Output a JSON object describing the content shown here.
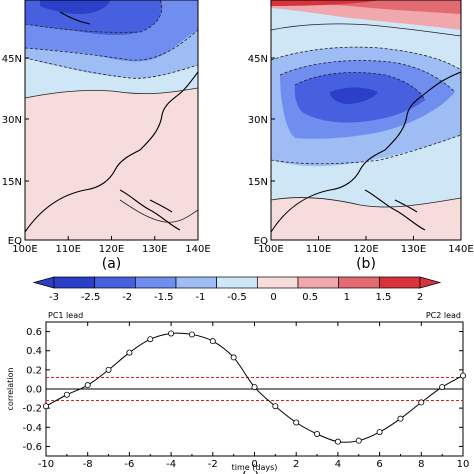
{
  "colors": {
    "deep_blue": "#2b3fc8",
    "blue": "#4660e0",
    "mid_blue": "#6f8ef0",
    "light_blue": "#9fbdf5",
    "pale_blue": "#cfe6f7",
    "pale_pink": "#f7dcdc",
    "pink": "#f0a8ad",
    "red": "#e46a72",
    "deep_red": "#d8333d",
    "line_red": "#e02020"
  },
  "maps": [
    {
      "label": "(a)",
      "x_ticks": [
        "100E",
        "110E",
        "120E",
        "130E",
        "140E"
      ],
      "y_ticks": [
        "EQ",
        "15N",
        "30N",
        "45N"
      ]
    },
    {
      "label": "(b)",
      "x_ticks": [
        "100E",
        "110E",
        "120E",
        "130E",
        "140E"
      ],
      "y_ticks": [
        "EQ",
        "15N",
        "30N",
        "45N"
      ]
    }
  ],
  "colorbar": {
    "labels": [
      "-3",
      "-2.5",
      "-2",
      "-1.5",
      "-1",
      "-0.5",
      "0",
      "0.5",
      "1",
      "1.5",
      "2"
    ]
  },
  "chart_data": {
    "type": "line",
    "title": "",
    "panel_label": "(c)",
    "xlabel": "time (days)",
    "ylabel": "correlation",
    "xlim": [
      -10,
      10
    ],
    "ylim": [
      -0.7,
      0.7
    ],
    "x_ticks": [
      -10,
      -8,
      -6,
      -4,
      -2,
      0,
      2,
      4,
      6,
      8,
      10
    ],
    "y_ticks": [
      -0.6,
      -0.4,
      -0.2,
      0,
      0.2,
      0.4,
      0.6
    ],
    "left_annotation": "PC1 lead",
    "right_annotation": "PC2 lead",
    "significance_levels": [
      0.12,
      -0.12
    ],
    "x": [
      -10,
      -9,
      -8,
      -7,
      -6,
      -5,
      -4,
      -3,
      -2,
      -1,
      0,
      1,
      2,
      3,
      4,
      5,
      6,
      7,
      8,
      9,
      10
    ],
    "y": [
      -0.18,
      -0.06,
      0.04,
      0.2,
      0.38,
      0.52,
      0.58,
      0.57,
      0.5,
      0.33,
      0.02,
      -0.18,
      -0.35,
      -0.47,
      -0.55,
      -0.54,
      -0.45,
      -0.31,
      -0.14,
      0.02,
      0.14
    ]
  }
}
